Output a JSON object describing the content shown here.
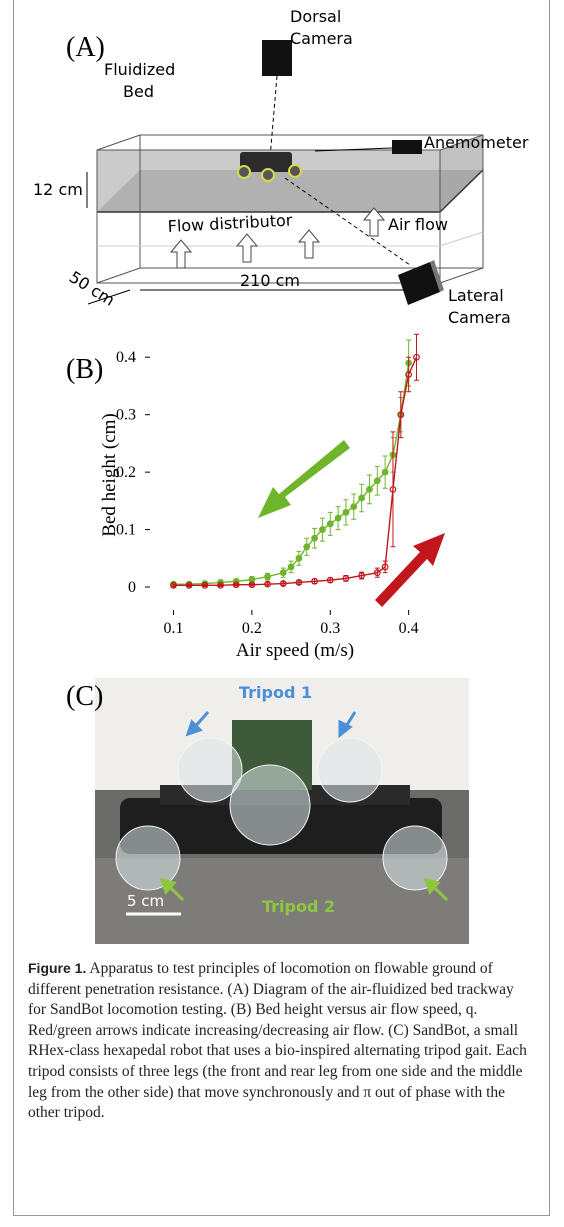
{
  "panel_a": {
    "label": "(A)",
    "dorsal_camera": [
      "Dorsal",
      "Camera"
    ],
    "fluidized_bed": [
      "Fluidized",
      "Bed"
    ],
    "anemometer": "Anemometer",
    "bed_depth": "12 cm",
    "flow_distributor": "Flow distributor",
    "air_flow": "Air flow",
    "width": "50 cm",
    "length": "210 cm",
    "lateral_camera": [
      "Lateral",
      "Camera"
    ]
  },
  "chart_data": {
    "type": "line",
    "label": "(B)",
    "xlabel": "Air speed (m/s)",
    "ylabel": "Bed height (cm)",
    "xlim": [
      0.07,
      0.44
    ],
    "ylim": [
      -0.04,
      0.43
    ],
    "xticks": [
      0.1,
      0.2,
      0.3,
      0.4
    ],
    "yticks": [
      0,
      0.1,
      0.2,
      0.3,
      0.4
    ],
    "series": [
      {
        "name": "decreasing",
        "color": "#6fb52c",
        "x": [
          0.1,
          0.12,
          0.14,
          0.16,
          0.18,
          0.2,
          0.22,
          0.24,
          0.25,
          0.26,
          0.27,
          0.28,
          0.29,
          0.3,
          0.31,
          0.32,
          0.33,
          0.34,
          0.35,
          0.36,
          0.37,
          0.38,
          0.39,
          0.4
        ],
        "values": [
          0.005,
          0.005,
          0.006,
          0.008,
          0.01,
          0.013,
          0.018,
          0.025,
          0.035,
          0.05,
          0.07,
          0.085,
          0.1,
          0.11,
          0.12,
          0.13,
          0.14,
          0.155,
          0.17,
          0.185,
          0.2,
          0.23,
          0.3,
          0.39
        ],
        "errors": [
          0.003,
          0.003,
          0.003,
          0.004,
          0.004,
          0.005,
          0.006,
          0.008,
          0.01,
          0.012,
          0.015,
          0.017,
          0.02,
          0.02,
          0.02,
          0.022,
          0.022,
          0.024,
          0.025,
          0.025,
          0.028,
          0.03,
          0.03,
          0.04
        ]
      },
      {
        "name": "increasing",
        "color": "#c0161c",
        "x": [
          0.1,
          0.12,
          0.14,
          0.16,
          0.18,
          0.2,
          0.22,
          0.24,
          0.26,
          0.28,
          0.3,
          0.32,
          0.34,
          0.36,
          0.37,
          0.38,
          0.39,
          0.4,
          0.41
        ],
        "values": [
          0.003,
          0.003,
          0.003,
          0.003,
          0.004,
          0.004,
          0.005,
          0.006,
          0.008,
          0.01,
          0.012,
          0.015,
          0.02,
          0.025,
          0.035,
          0.17,
          0.3,
          0.37,
          0.4
        ],
        "errors": [
          0.002,
          0.002,
          0.002,
          0.002,
          0.002,
          0.002,
          0.003,
          0.003,
          0.003,
          0.004,
          0.004,
          0.005,
          0.006,
          0.008,
          0.01,
          0.1,
          0.04,
          0.03,
          0.04
        ]
      }
    ]
  },
  "panel_c": {
    "label": "(C)",
    "tripod_1": "Tripod 1",
    "tripod_2": "Tripod 2",
    "scale_bar": "5 cm"
  },
  "caption": {
    "label": "Figure 1.",
    "text": "Apparatus to test principles of locomotion on flowable ground of different penetration resistance. (A) Diagram of the air-fluidized bed trackway for SandBot locomotion testing. (B) Bed height versus air flow speed, q. Red/green arrows indicate increasing/decreasing air flow. (C) SandBot, a small RHex-class hexapedal robot that uses a bio-inspired alternating tripod gait. Each tripod consists of three legs (the front and rear leg from one side and the middle leg from the other side) that move synchronously and π out of phase with the other tripod."
  }
}
